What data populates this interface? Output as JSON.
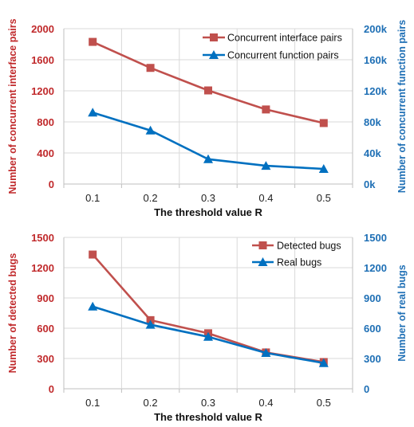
{
  "chart_data": [
    {
      "type": "line",
      "categories": [
        "0.1",
        "0.2",
        "0.3",
        "0.4",
        "0.5"
      ],
      "xlabel": "The threshold value R",
      "ylabel_left": "Number of concurrent interface pairs",
      "ylabel_right": "Number of concurrent function pairs",
      "ylim_left": [
        0,
        2000
      ],
      "ylim_right": [
        0,
        200000
      ],
      "yticks_left": [
        "0",
        "400",
        "800",
        "1200",
        "1600",
        "2000"
      ],
      "yticks_right": [
        "0k",
        "40k",
        "80k",
        "120k",
        "160k",
        "200k"
      ],
      "grid": true,
      "legend_position": "top-right",
      "left_axis_color": "#c0292b",
      "right_axis_color": "#1e6fb5",
      "series": [
        {
          "name": "Concurrent interface pairs",
          "axis": "left",
          "marker": "square",
          "color": "#c0504d",
          "values": [
            1830,
            1495,
            1205,
            960,
            785
          ]
        },
        {
          "name": "Concurrent function pairs",
          "axis": "right",
          "marker": "triangle",
          "color": "#0070c0",
          "values": [
            92000,
            69000,
            32000,
            23500,
            19500
          ]
        }
      ]
    },
    {
      "type": "line",
      "categories": [
        "0.1",
        "0.2",
        "0.3",
        "0.4",
        "0.5"
      ],
      "xlabel": "The threshold value R",
      "ylabel_left": "Number of detected bugs",
      "ylabel_right": "Number of real bugs",
      "ylim_left": [
        0,
        1500
      ],
      "ylim_right": [
        0,
        1500
      ],
      "yticks_left": [
        "0",
        "300",
        "600",
        "900",
        "1200",
        "1500"
      ],
      "yticks_right": [
        "0",
        "300",
        "600",
        "900",
        "1200",
        "1500"
      ],
      "grid": true,
      "legend_position": "top-right",
      "left_axis_color": "#c0292b",
      "right_axis_color": "#1e6fb5",
      "series": [
        {
          "name": "Detected bugs",
          "axis": "left",
          "marker": "square",
          "color": "#c0504d",
          "values": [
            1330,
            680,
            550,
            360,
            265
          ]
        },
        {
          "name": "Real bugs",
          "axis": "right",
          "marker": "triangle",
          "color": "#0070c0",
          "values": [
            815,
            635,
            515,
            355,
            255
          ]
        }
      ]
    }
  ]
}
